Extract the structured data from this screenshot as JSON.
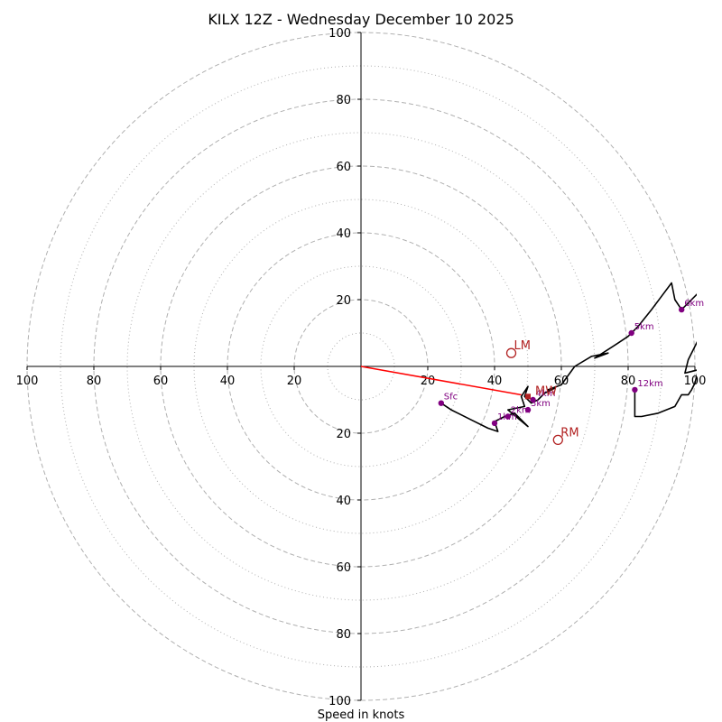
{
  "chart_data": {
    "type": "hodograph",
    "title": "KILX 12Z - Wednesday December 10 2025",
    "xlabel": "Speed in knots",
    "units": "knots",
    "max_speed": 100,
    "major_rings": [
      20,
      40,
      60,
      80,
      100
    ],
    "minor_rings": [
      10,
      30,
      50,
      70,
      90
    ],
    "axis_ticks": {
      "right": [
        "20",
        "40",
        "60",
        "80",
        "100"
      ],
      "left": [
        "100",
        "80",
        "60",
        "40",
        "20"
      ],
      "up": [
        "20",
        "40",
        "60",
        "80",
        "100"
      ],
      "down": [
        "20",
        "40",
        "60",
        "80",
        "100"
      ]
    },
    "trace": [
      [
        24,
        -11
      ],
      [
        27,
        -13
      ],
      [
        33,
        -16
      ],
      [
        38,
        -18.5
      ],
      [
        41,
        -19.5
      ],
      [
        40,
        -16.5
      ],
      [
        43,
        -15
      ],
      [
        46,
        -14
      ],
      [
        50,
        -18
      ],
      [
        44,
        -13
      ],
      [
        49,
        -12
      ],
      [
        48,
        -9
      ],
      [
        50,
        -6
      ],
      [
        49,
        -9
      ],
      [
        51,
        -11
      ],
      [
        53,
        -10
      ],
      [
        55,
        -8
      ],
      [
        58,
        -6.5
      ],
      [
        56,
        -7
      ],
      [
        60,
        -5.5
      ],
      [
        64,
        0
      ],
      [
        69,
        3
      ],
      [
        74,
        4
      ],
      [
        70,
        2.5
      ],
      [
        77,
        7
      ],
      [
        80,
        9
      ],
      [
        83,
        12
      ],
      [
        87,
        17
      ],
      [
        90,
        21
      ],
      [
        93,
        25
      ],
      [
        94,
        20
      ],
      [
        96,
        17
      ],
      [
        98,
        19
      ],
      [
        101,
        22
      ],
      [
        101,
        8
      ],
      [
        98,
        2
      ],
      [
        97,
        -2
      ],
      [
        101,
        -1
      ],
      [
        100,
        -5
      ],
      [
        99,
        -7
      ],
      [
        98,
        -8.5
      ],
      [
        96,
        -8.5
      ],
      [
        94,
        -12
      ],
      [
        89,
        -14
      ],
      [
        84,
        -15
      ],
      [
        82,
        -15
      ],
      [
        82,
        -7
      ]
    ],
    "height_labels": [
      {
        "label": "Sfc",
        "u": 24,
        "v": -11
      },
      {
        "label": "1km",
        "u": 40,
        "v": -17
      },
      {
        "label": "2km",
        "u": 44,
        "v": -15
      },
      {
        "label": "3km",
        "u": 50,
        "v": -13
      },
      {
        "label": "4km",
        "u": 51.5,
        "v": -10
      },
      {
        "label": "5km",
        "u": 81,
        "v": 10
      },
      {
        "label": "6km",
        "u": 96,
        "v": 17
      },
      {
        "label": "12km",
        "u": 82,
        "v": -7
      }
    ],
    "storm_motion": {
      "mean_wind": {
        "label": "MW",
        "u": 50,
        "v": -9
      },
      "left_mover": {
        "label": "LM",
        "u": 45,
        "v": 4
      },
      "right_mover": {
        "label": "RM",
        "u": 59,
        "v": -22
      }
    },
    "shear_vector": {
      "from": [
        0,
        0
      ],
      "to": [
        48,
        -8.5
      ]
    },
    "colors": {
      "trace": "#000000",
      "height_points": "#800080",
      "storm_motion": "#b22222",
      "shear_vector": "#ff0000",
      "grid": "#b0b0b0"
    }
  }
}
